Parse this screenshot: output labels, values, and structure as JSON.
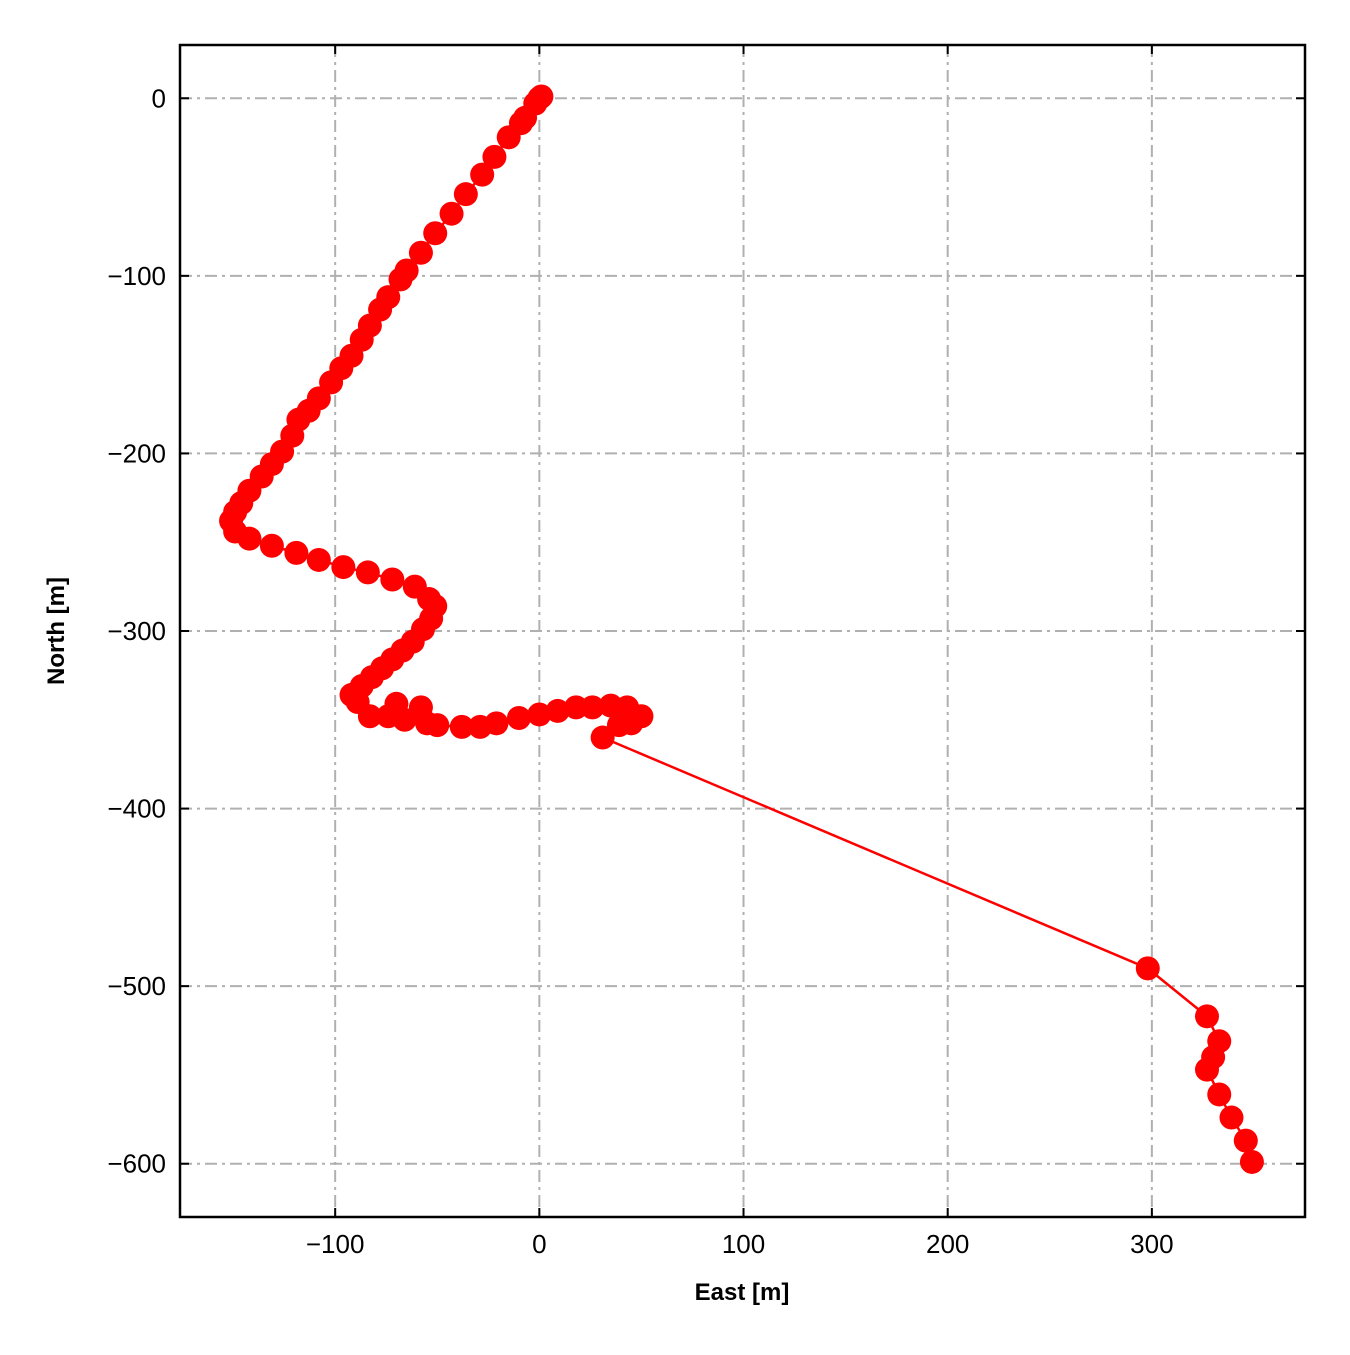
{
  "chart_data": {
    "type": "line",
    "xlabel": "East [m]",
    "ylabel": "North [m]",
    "color": "#ff0000",
    "grid": true,
    "x": [
      1,
      0,
      -2,
      -7,
      -9,
      -15,
      -22,
      -28,
      -36,
      -43,
      -51,
      -58,
      -65,
      -68,
      -74,
      -78,
      -83,
      -87,
      -92,
      -97,
      -102,
      -108,
      -113,
      -118,
      -121,
      -126,
      -131,
      -136,
      -142,
      -146,
      -149,
      -151,
      -149,
      -142,
      -131,
      -119,
      -108,
      -96,
      -84,
      -72,
      -61,
      -54,
      -51,
      -53,
      -57,
      -62,
      -67,
      -72,
      -77,
      -82,
      -87,
      -92,
      -89,
      -83,
      -74,
      -70,
      -66,
      -58,
      -55,
      -50,
      -38,
      -29,
      -21,
      -10,
      0,
      9,
      18,
      26,
      35,
      43,
      50,
      45,
      39,
      31,
      298,
      327,
      333,
      330,
      327,
      333,
      339,
      346,
      349
    ],
    "values": [
      1,
      0,
      -3,
      -11,
      -14,
      -22,
      -33,
      -43,
      -54,
      -65,
      -76,
      -87,
      -97,
      -102,
      -112,
      -119,
      -128,
      -136,
      -145,
      -152,
      -160,
      -169,
      -176,
      -181,
      -190,
      -199,
      -206,
      -213,
      -221,
      -228,
      -233,
      -238,
      -244,
      -248,
      -252,
      -256,
      -260,
      -264,
      -267,
      -271,
      -275,
      -282,
      -286,
      -293,
      -299,
      -306,
      -311,
      -316,
      -321,
      -326,
      -331,
      -336,
      -340,
      -348,
      -348,
      -341,
      -350,
      -343,
      -352,
      -353,
      -354,
      -354,
      -352,
      -349,
      -347,
      -345,
      -343,
      -343,
      -342,
      -343,
      -348,
      -352,
      -353,
      -360,
      -490,
      -517,
      -531,
      -540,
      -547,
      -561,
      -574,
      -587,
      -599
    ],
    "xlim": [
      -176,
      375
    ],
    "xticks": [
      {
        "value": -100,
        "label": "−100"
      },
      0,
      100,
      200,
      300
    ],
    "ylim": [
      -630,
      30
    ],
    "yticks": [
      0,
      {
        "value": -100,
        "label": "−100"
      },
      {
        "value": -200,
        "label": "−200"
      },
      {
        "value": -300,
        "label": "−300"
      },
      {
        "value": -400,
        "label": "−400"
      },
      {
        "value": -500,
        "label": "−500"
      },
      {
        "value": -600,
        "label": "−600"
      }
    ]
  }
}
